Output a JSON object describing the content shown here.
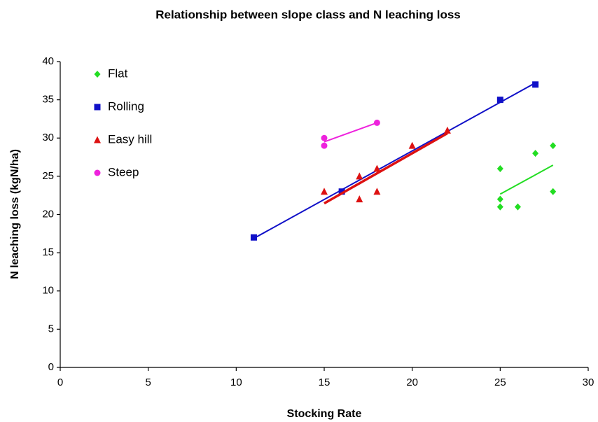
{
  "chart_data": {
    "type": "scatter",
    "title": "Relationship between slope class and N leaching loss",
    "xlabel": "Stocking Rate",
    "ylabel": "N leaching loss (kgN/ha)",
    "xlim": [
      0,
      30
    ],
    "xticks": [
      0,
      5,
      10,
      15,
      20,
      25,
      30
    ],
    "ylim": [
      0,
      40
    ],
    "yticks": [
      0,
      5,
      10,
      15,
      20,
      25,
      30,
      35,
      40
    ],
    "grid": false,
    "legend": "upper left",
    "trendline": true,
    "series": [
      {
        "name": "Flat",
        "color": "#22dd22",
        "marker": "diamond",
        "x": [
          25,
          25,
          25,
          26,
          27,
          28,
          28
        ],
        "values": [
          26,
          22,
          21,
          21,
          28,
          29,
          23
        ]
      },
      {
        "name": "Rolling",
        "color": "#1010c8",
        "marker": "square",
        "x": [
          11,
          16,
          25,
          27
        ],
        "values": [
          17,
          23,
          35,
          37
        ]
      },
      {
        "name": "Easy hill",
        "color": "#dd1111",
        "marker": "triangle",
        "x": [
          15,
          17,
          17,
          18,
          18,
          20,
          22
        ],
        "values": [
          23,
          22,
          25,
          26,
          23,
          29,
          31
        ]
      },
      {
        "name": "Steep",
        "color": "#ee22dd",
        "marker": "circle",
        "x": [
          15,
          15,
          18
        ],
        "values": [
          30,
          29,
          32
        ]
      }
    ]
  }
}
